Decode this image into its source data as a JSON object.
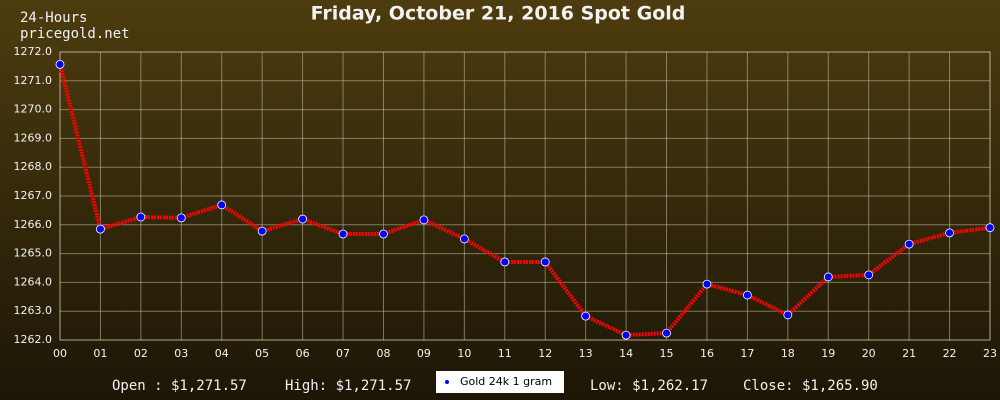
{
  "chart_data": {
    "type": "line",
    "title": "Friday, October 21, 2016 Spot Gold",
    "source_lines": [
      "24-Hours",
      "pricegold.net"
    ],
    "categories": [
      "00",
      "01",
      "02",
      "03",
      "04",
      "05",
      "06",
      "07",
      "08",
      "09",
      "10",
      "11",
      "12",
      "13",
      "14",
      "15",
      "16",
      "17",
      "18",
      "19",
      "20",
      "21",
      "22",
      "23"
    ],
    "series": [
      {
        "name": "Gold 24k 1 gram",
        "color": "#ff0000",
        "marker_color": "#0000ff",
        "values": [
          1271.57,
          1265.85,
          1266.27,
          1266.24,
          1266.69,
          1265.78,
          1266.2,
          1265.68,
          1265.68,
          1266.17,
          1265.51,
          1264.71,
          1264.71,
          1262.83,
          1262.17,
          1262.24,
          1263.94,
          1263.56,
          1262.87,
          1264.19,
          1264.26,
          1265.33,
          1265.72,
          1265.9
        ]
      }
    ],
    "ylim": [
      1262,
      1272
    ],
    "yticks": [
      {
        "value": 1262,
        "label": "1262.0"
      },
      {
        "value": 1263,
        "label": "1263.0"
      },
      {
        "value": 1264,
        "label": "1264.0"
      },
      {
        "value": 1265,
        "label": "1265.0"
      },
      {
        "value": 1266,
        "label": "1266.0"
      },
      {
        "value": 1267,
        "label": "1267.0"
      },
      {
        "value": 1268,
        "label": "1268.0"
      },
      {
        "value": 1269,
        "label": "1269.0"
      },
      {
        "value": 1270,
        "label": "1270.0"
      },
      {
        "value": 1271,
        "label": "1271.0"
      },
      {
        "value": 1272,
        "label": "1272.0"
      }
    ],
    "grid": true,
    "summary": {
      "open": "Open : $1,271.57",
      "high": "High: $1,271.57",
      "low": "Low: $1,262.17",
      "close": "Close: $1,265.90"
    }
  }
}
